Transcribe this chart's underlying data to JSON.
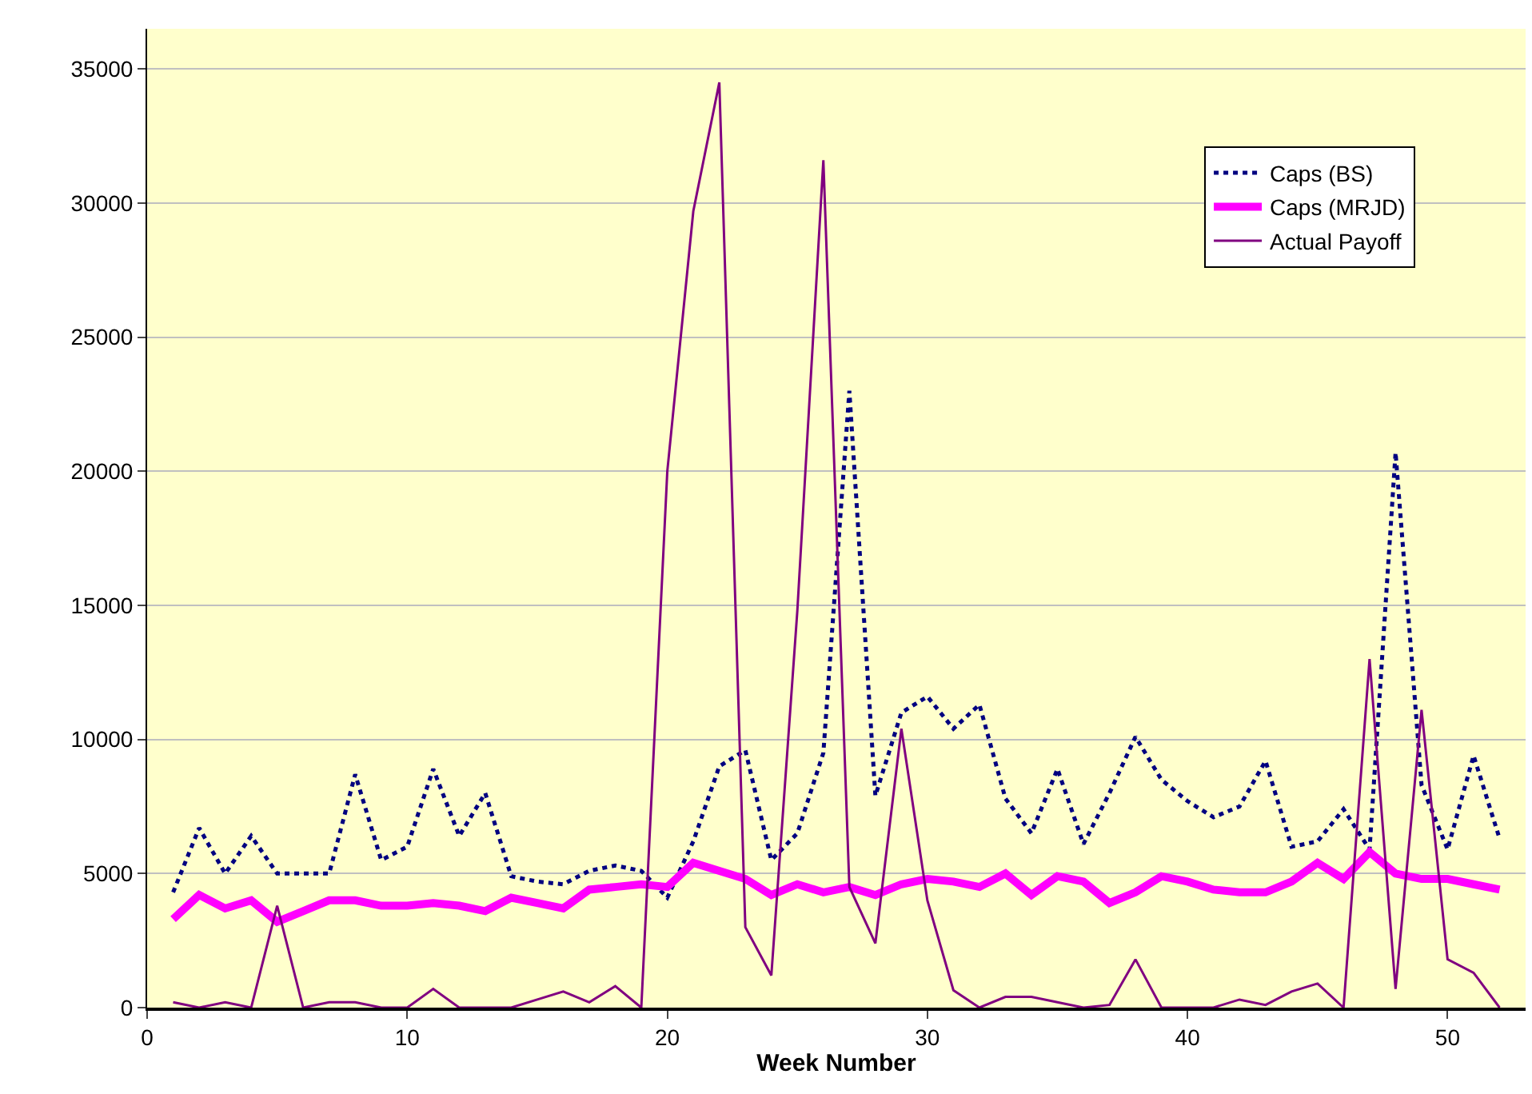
{
  "chart_data": {
    "type": "line",
    "xlabel": "Week Number",
    "x": [
      1,
      2,
      3,
      4,
      5,
      6,
      7,
      8,
      9,
      10,
      11,
      12,
      13,
      14,
      15,
      16,
      17,
      18,
      19,
      20,
      21,
      22,
      23,
      24,
      25,
      26,
      27,
      28,
      29,
      30,
      31,
      32,
      33,
      34,
      35,
      36,
      37,
      38,
      39,
      40,
      41,
      42,
      43,
      44,
      45,
      46,
      47,
      48,
      49,
      50,
      51,
      52
    ],
    "series": [
      {
        "name": "Caps (BS)",
        "color": "#000080",
        "line_style": "dotted",
        "values": [
          4300,
          6700,
          5000,
          6400,
          5000,
          5000,
          5000,
          8700,
          5500,
          6000,
          8900,
          6400,
          8000,
          4900,
          4700,
          4600,
          5100,
          5300,
          5100,
          4100,
          6200,
          9000,
          9600,
          5500,
          6500,
          9500,
          23000,
          7900,
          11000,
          11600,
          10400,
          11300,
          7800,
          6500,
          8900,
          6100,
          8000,
          10100,
          8500,
          7700,
          7100,
          7500,
          9200,
          6000,
          6200,
          7400,
          5900,
          20700,
          8300,
          5900,
          9400,
          6300
        ]
      },
      {
        "name": "Caps (MRJD)",
        "color": "#ff00ff",
        "line_style": "solid",
        "values": [
          3300,
          4200,
          3700,
          4000,
          3200,
          3600,
          4000,
          4000,
          3800,
          3800,
          3900,
          3800,
          3600,
          4100,
          3900,
          3700,
          4400,
          4500,
          4600,
          4500,
          5400,
          5100,
          4800,
          4200,
          4600,
          4300,
          4500,
          4200,
          4600,
          4800,
          4700,
          4500,
          5000,
          4200,
          4900,
          4700,
          3900,
          4300,
          4900,
          4700,
          4400,
          4300,
          4300,
          4700,
          5400,
          4800,
          5800,
          5000,
          4800,
          4800,
          4600,
          4400
        ]
      },
      {
        "name": "Actual Payoff",
        "color": "#800080",
        "line_style": "solid",
        "values": [
          200,
          0,
          200,
          0,
          3800,
          0,
          200,
          200,
          0,
          0,
          700,
          0,
          0,
          0,
          300,
          600,
          200,
          800,
          0,
          20000,
          29700,
          34500,
          3000,
          1200,
          14800,
          31600,
          4500,
          2400,
          10400,
          4000,
          650,
          0,
          400,
          400,
          200,
          0,
          100,
          1800,
          0,
          0,
          0,
          300,
          100,
          600,
          900,
          0,
          13000,
          700,
          11100,
          1800,
          1300,
          0
        ]
      }
    ],
    "xlim": [
      0,
      53
    ],
    "xticks": [
      0,
      10,
      20,
      30,
      40,
      50
    ],
    "ylim": [
      0,
      36500
    ],
    "yticks": [
      0,
      5000,
      10000,
      15000,
      20000,
      25000,
      30000,
      35000
    ],
    "grid": "y",
    "legend": "top right",
    "marker": "none"
  }
}
